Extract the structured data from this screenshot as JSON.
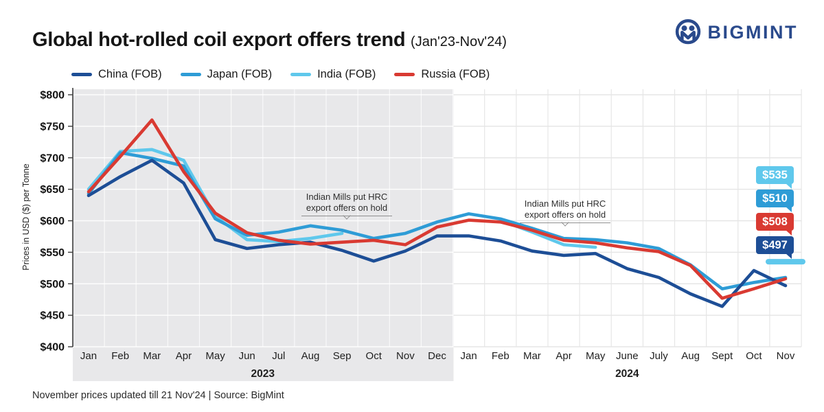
{
  "header": {
    "title": "Global hot-rolled coil export offers trend",
    "subtitle": "(Jan'23-Nov'24)",
    "brand": "BIGMINT"
  },
  "footer": {
    "note": "November prices updated till  21 Nov'24 |  Source: BigMint"
  },
  "chart_data": {
    "type": "line",
    "title": "Global hot-rolled coil export offers trend",
    "subtitle": "(Jan'23-Nov'24)",
    "ylabel": "Prices in USD ($) per Tonne",
    "ylim": [
      400,
      800
    ],
    "ytick_step": 50,
    "ytick_prefix": "$",
    "grid": true,
    "legend_position": "top",
    "categories": [
      "Jan",
      "Feb",
      "Mar",
      "Apr",
      "May",
      "Jun",
      "Jul",
      "Aug",
      "Sep",
      "Oct",
      "Nov",
      "Dec",
      "Jan",
      "Feb",
      "Mar",
      "Apr",
      "May",
      "June",
      "July",
      "Aug",
      "Sept",
      "Oct",
      "Nov"
    ],
    "year_groups": [
      {
        "label": "2023",
        "start": 0,
        "end": 11,
        "shaded": true
      },
      {
        "label": "2024",
        "start": 12,
        "end": 22,
        "shaded": false
      }
    ],
    "series": [
      {
        "name": "China (FOB)",
        "color": "#1d4e96",
        "values": [
          640,
          670,
          696,
          660,
          570,
          556,
          562,
          566,
          553,
          536,
          552,
          576,
          576,
          568,
          552,
          545,
          548,
          524,
          510,
          484,
          464,
          521,
          497
        ]
      },
      {
        "name": "Japan (FOB)",
        "color": "#2e9cd6",
        "values": [
          643,
          708,
          699,
          687,
          603,
          577,
          582,
          592,
          585,
          572,
          580,
          598,
          611,
          603,
          588,
          572,
          570,
          565,
          556,
          530,
          492,
          502,
          510
        ]
      },
      {
        "name": "India (FOB)",
        "color": "#5fc8ec",
        "values": [
          650,
          710,
          713,
          696,
          607,
          570,
          567,
          572,
          580,
          null,
          null,
          null,
          null,
          601,
          582,
          562,
          558,
          null,
          null,
          null,
          null,
          null,
          535
        ]
      },
      {
        "name": "Russia (FOB)",
        "color": "#d93a32",
        "values": [
          646,
          702,
          760,
          678,
          612,
          581,
          569,
          563,
          566,
          569,
          562,
          590,
          601,
          598,
          585,
          569,
          565,
          557,
          551,
          529,
          477,
          492,
          508
        ]
      }
    ],
    "end_labels": [
      {
        "text": "$535",
        "series": "India (FOB)",
        "color": "#5fc8ec"
      },
      {
        "text": "$510",
        "series": "Japan (FOB)",
        "color": "#2e9cd6"
      },
      {
        "text": "$508",
        "series": "Russia (FOB)",
        "color": "#d93a32"
      },
      {
        "text": "$497",
        "series": "China (FOB)",
        "color": "#1d4e96"
      }
    ],
    "annotations": [
      {
        "line1": "Indian Mills put HRC",
        "line2": "export offers on hold",
        "anchor_index": 8
      },
      {
        "line1": "Indian Mills put HRC",
        "line2": "export offers on hold",
        "anchor_index": 15
      }
    ]
  }
}
